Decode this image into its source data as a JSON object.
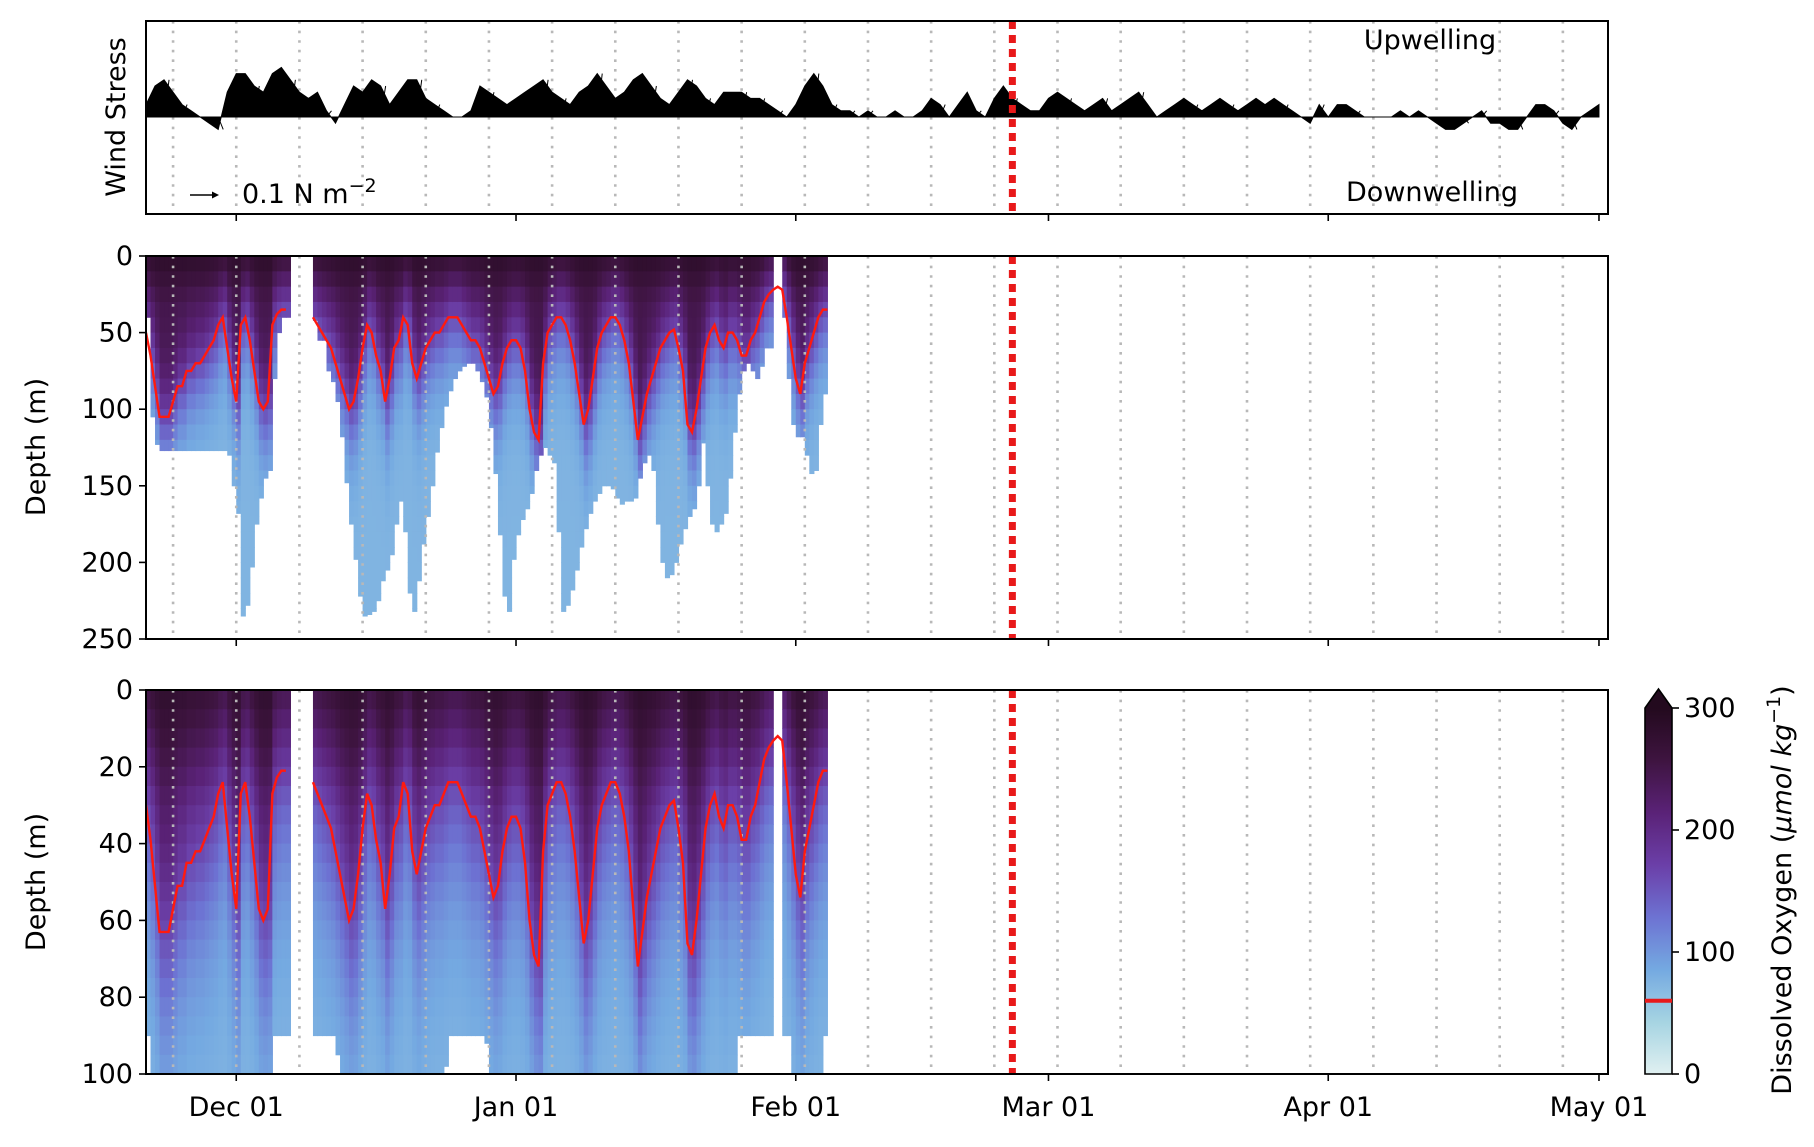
{
  "chart_data": [
    {
      "type": "quiver",
      "panel": "wind",
      "ylabel": "Wind Stress",
      "annotations": {
        "top": "Upwelling",
        "bottom": "Downwelling"
      },
      "scale_label": "0.1 N m",
      "scale_label_exp": "−2",
      "x_ticks": [
        "Dec 01",
        "Jan 01",
        "Feb 01",
        "Mar 01",
        "Apr 01",
        "May 01"
      ],
      "x_range": [
        "2022-11-21",
        "2023-05-02"
      ],
      "marker_date": "2023-02-25",
      "marker_color": "#e8191a",
      "series": [
        {
          "start": "2022-11-21",
          "step_days": 1,
          "values_northward": [
            0.02,
            0.05,
            0.06,
            0.04,
            0.02,
            0.01,
            0.0,
            -0.01,
            -0.02,
            0.04,
            0.07,
            0.07,
            0.05,
            0.04,
            0.07,
            0.08,
            0.06,
            0.04,
            0.03,
            0.04,
            0.01,
            -0.01,
            0.02,
            0.05,
            0.04,
            0.06,
            0.05,
            0.02,
            0.04,
            0.06,
            0.06,
            0.03,
            0.02,
            0.01,
            0.0,
            0.0,
            0.01,
            0.05,
            0.04,
            0.03,
            0.02,
            0.03,
            0.04,
            0.05,
            0.06,
            0.04,
            0.03,
            0.02,
            0.04,
            0.05,
            0.07,
            0.05,
            0.03,
            0.04,
            0.06,
            0.07,
            0.05,
            0.03,
            0.02,
            0.04,
            0.06,
            0.05,
            0.03,
            0.02,
            0.04,
            0.04,
            0.04,
            0.03,
            0.03,
            0.02,
            0.01,
            0.0,
            0.02,
            0.05,
            0.07,
            0.05,
            0.02,
            0.01,
            0.01,
            0.0,
            0.01,
            0.0,
            0.0,
            0.01,
            0.0,
            0.0,
            0.01,
            0.03,
            0.02,
            0.0,
            0.02,
            0.04,
            0.01,
            0.0,
            0.03,
            0.05,
            0.03,
            0.02,
            0.01,
            0.01,
            0.03,
            0.04,
            0.03,
            0.02,
            0.01,
            0.02,
            0.03,
            0.01,
            0.02,
            0.03,
            0.04,
            0.02,
            0.0,
            0.01,
            0.02,
            0.03,
            0.02,
            0.01,
            0.02,
            0.03,
            0.02,
            0.01,
            0.02,
            0.03,
            0.02,
            0.03,
            0.02,
            0.01,
            0.0,
            -0.01,
            0.02,
            0.0,
            0.02,
            0.02,
            0.01,
            0.0,
            0.0,
            0.0,
            0.0,
            0.01,
            0.0,
            0.01,
            0.0,
            -0.01,
            -0.02,
            -0.02,
            -0.01,
            0.0,
            0.01,
            -0.01,
            -0.01,
            -0.02,
            -0.02,
            0.0,
            0.02,
            0.02,
            0.01,
            -0.01,
            -0.02,
            0.0,
            0.01,
            0.02
          ]
        }
      ]
    },
    {
      "type": "heatmap",
      "panel": "oxygen_250m",
      "ylabel": "Depth (m)",
      "y_ticks": [
        "0",
        "50",
        "100",
        "150",
        "200",
        "250"
      ],
      "ylim": [
        250,
        0
      ],
      "x_ticks": [
        "Dec 01",
        "Jan 01",
        "Feb 01",
        "Mar 01",
        "Apr 01",
        "May 01"
      ],
      "x_range": [
        "2022-11-21",
        "2023-05-02"
      ],
      "marker_date": "2023-02-25",
      "line_color": "#ff1a0f",
      "series": [
        {
          "start": "2022-11-21",
          "step_days": 0.5,
          "max_depth_m": [
            40,
            105,
            123,
            127,
            127,
            127,
            127,
            127,
            127,
            127,
            127,
            127,
            127,
            127,
            127,
            127,
            127,
            127,
            130,
            150,
            168,
            235,
            228,
            203,
            175,
            158,
            145,
            140,
            80,
            50,
            40,
            40,
            null,
            null,
            null,
            null,
            null,
            42,
            55,
            55,
            75,
            82,
            95,
            118,
            148,
            175,
            198,
            222,
            235,
            234,
            232,
            225,
            212,
            205,
            195,
            175,
            160,
            180,
            220,
            232,
            212,
            188,
            170,
            150,
            128,
            112,
            98,
            88,
            80,
            75,
            72,
            70,
            70,
            75,
            82,
            92,
            112,
            142,
            182,
            222,
            232,
            198,
            182,
            172,
            165,
            155,
            140,
            130,
            125,
            130,
            135,
            180,
            232,
            228,
            218,
            205,
            190,
            178,
            168,
            160,
            155,
            150,
            150,
            152,
            158,
            162,
            160,
            160,
            158,
            145,
            135,
            130,
            140,
            175,
            200,
            210,
            208,
            200,
            188,
            178,
            170,
            165,
            150,
            122,
            150,
            175,
            180,
            175,
            168,
            145,
            115,
            90,
            75,
            70,
            75,
            80,
            72,
            60,
            60,
            null,
            null,
            40,
            80,
            110,
            118,
            118,
            130,
            142,
            140,
            110,
            90,
            null,
            null,
            null,
            null,
            null,
            null,
            null,
            null,
            null,
            null,
            null,
            null,
            null,
            null,
            null,
            null,
            null,
            null,
            null,
            null,
            null,
            null,
            null,
            null,
            null,
            null,
            null,
            null,
            null,
            null,
            null,
            null,
            null,
            null,
            null,
            null,
            null,
            null,
            null,
            null,
            null,
            null,
            null,
            null,
            null,
            null,
            null,
            null,
            null,
            null,
            null,
            null,
            null,
            null,
            null,
            null,
            null,
            null,
            null,
            null,
            null,
            null,
            null,
            null,
            null,
            null,
            null,
            null,
            null,
            null,
            null,
            null,
            null,
            null,
            null,
            null,
            null,
            null,
            null,
            null,
            null,
            null,
            null,
            null,
            null,
            null,
            null,
            null,
            null,
            null,
            null,
            null,
            null,
            null,
            null,
            null,
            null,
            null,
            null,
            null,
            null,
            null,
            null,
            null,
            null,
            null,
            null,
            null,
            null,
            null,
            null,
            null,
            null,
            null,
            null,
            null,
            null,
            null,
            null,
            null,
            null,
            null,
            null,
            null,
            null,
            null,
            null,
            null,
            null,
            null,
            null,
            null,
            null,
            null,
            null,
            null,
            null,
            null,
            null,
            null,
            null,
            null,
            null,
            null,
            null,
            null,
            null,
            null,
            null,
            null,
            null,
            null,
            null,
            null,
            null,
            null,
            null
          ],
          "oxycline_m": [
            50,
            65,
            85,
            105,
            105,
            105,
            95,
            85,
            85,
            75,
            75,
            70,
            70,
            65,
            60,
            55,
            45,
            40,
            60,
            80,
            95,
            45,
            40,
            55,
            75,
            95,
            100,
            95,
            45,
            38,
            35,
            35,
            null,
            null,
            null,
            null,
            null,
            40,
            45,
            50,
            55,
            60,
            70,
            80,
            90,
            100,
            95,
            80,
            60,
            45,
            50,
            65,
            75,
            95,
            80,
            60,
            55,
            40,
            45,
            70,
            80,
            70,
            60,
            55,
            50,
            50,
            45,
            40,
            40,
            40,
            45,
            50,
            55,
            55,
            60,
            70,
            80,
            90,
            85,
            70,
            60,
            55,
            55,
            60,
            75,
            100,
            115,
            120,
            70,
            50,
            45,
            40,
            40,
            45,
            55,
            70,
            90,
            110,
            100,
            80,
            60,
            50,
            45,
            40,
            40,
            45,
            55,
            70,
            95,
            120,
            105,
            90,
            80,
            70,
            60,
            55,
            50,
            48,
            60,
            75,
            110,
            115,
            100,
            80,
            60,
            50,
            45,
            55,
            60,
            50,
            50,
            55,
            65,
            65,
            55,
            50,
            40,
            30,
            25,
            22,
            20,
            22,
            40,
            60,
            80,
            90,
            70,
            60,
            50,
            40,
            35,
            35,
            null,
            null,
            null,
            null,
            null,
            null,
            null,
            null,
            null,
            null,
            null,
            null,
            null,
            null,
            null,
            null,
            null,
            null,
            null,
            null,
            null,
            null,
            null,
            null,
            null,
            null,
            null,
            null,
            null,
            null,
            null,
            null,
            null,
            null,
            null,
            null,
            null,
            null,
            null,
            null,
            null,
            null,
            null,
            null,
            null,
            null,
            null,
            null,
            null,
            null,
            null,
            null,
            null,
            null,
            null,
            null,
            null,
            null,
            null,
            null,
            null,
            null,
            null,
            null,
            null,
            null,
            null,
            null,
            null,
            null,
            null,
            null,
            null,
            null,
            null,
            null,
            null,
            null,
            null,
            null,
            null,
            null,
            null,
            null,
            null,
            null,
            null,
            null,
            null,
            null,
            null,
            null,
            null,
            null,
            null,
            null,
            null,
            null,
            null,
            null,
            null,
            null,
            null,
            null,
            null,
            null,
            null,
            null,
            null,
            null,
            null,
            null,
            null,
            null,
            null,
            null,
            null,
            null,
            null,
            null,
            null,
            null,
            null,
            null,
            null,
            null,
            null,
            null,
            null,
            null,
            null,
            null,
            null,
            null,
            null,
            null,
            null,
            null,
            null,
            null,
            null,
            null,
            null,
            null,
            null,
            null,
            null,
            null,
            null,
            null,
            null,
            null,
            null,
            null,
            null,
            null,
            null
          ]
        }
      ]
    },
    {
      "type": "heatmap",
      "panel": "oxygen_100m",
      "ylabel": "Depth (m)",
      "y_ticks": [
        "0",
        "20",
        "40",
        "60",
        "80",
        "100"
      ],
      "ylim": [
        100,
        0
      ],
      "x_ticks": [
        "Dec 01",
        "Jan 01",
        "Feb 01",
        "Mar 01",
        "Apr 01",
        "May 01"
      ],
      "x_range": [
        "2022-11-21",
        "2023-05-02"
      ],
      "marker_date": "2023-02-25",
      "line_color": "#ff1a0f",
      "colorbar": {
        "label": "Dissolved Oxygen (",
        "label_unit": "μmol kg",
        "label_exp": "−1",
        "ticks": [
          "0",
          "100",
          "200",
          "300"
        ],
        "range": [
          0,
          300
        ],
        "extend": "max",
        "threshold": 60,
        "threshold_color": "#e8191a",
        "colors": [
          "#e0f0f1",
          "#a6d4e2",
          "#74a9e1",
          "#6d72d2",
          "#6b3fa8",
          "#5a2277",
          "#3e1440",
          "#230a1e"
        ]
      }
    }
  ]
}
